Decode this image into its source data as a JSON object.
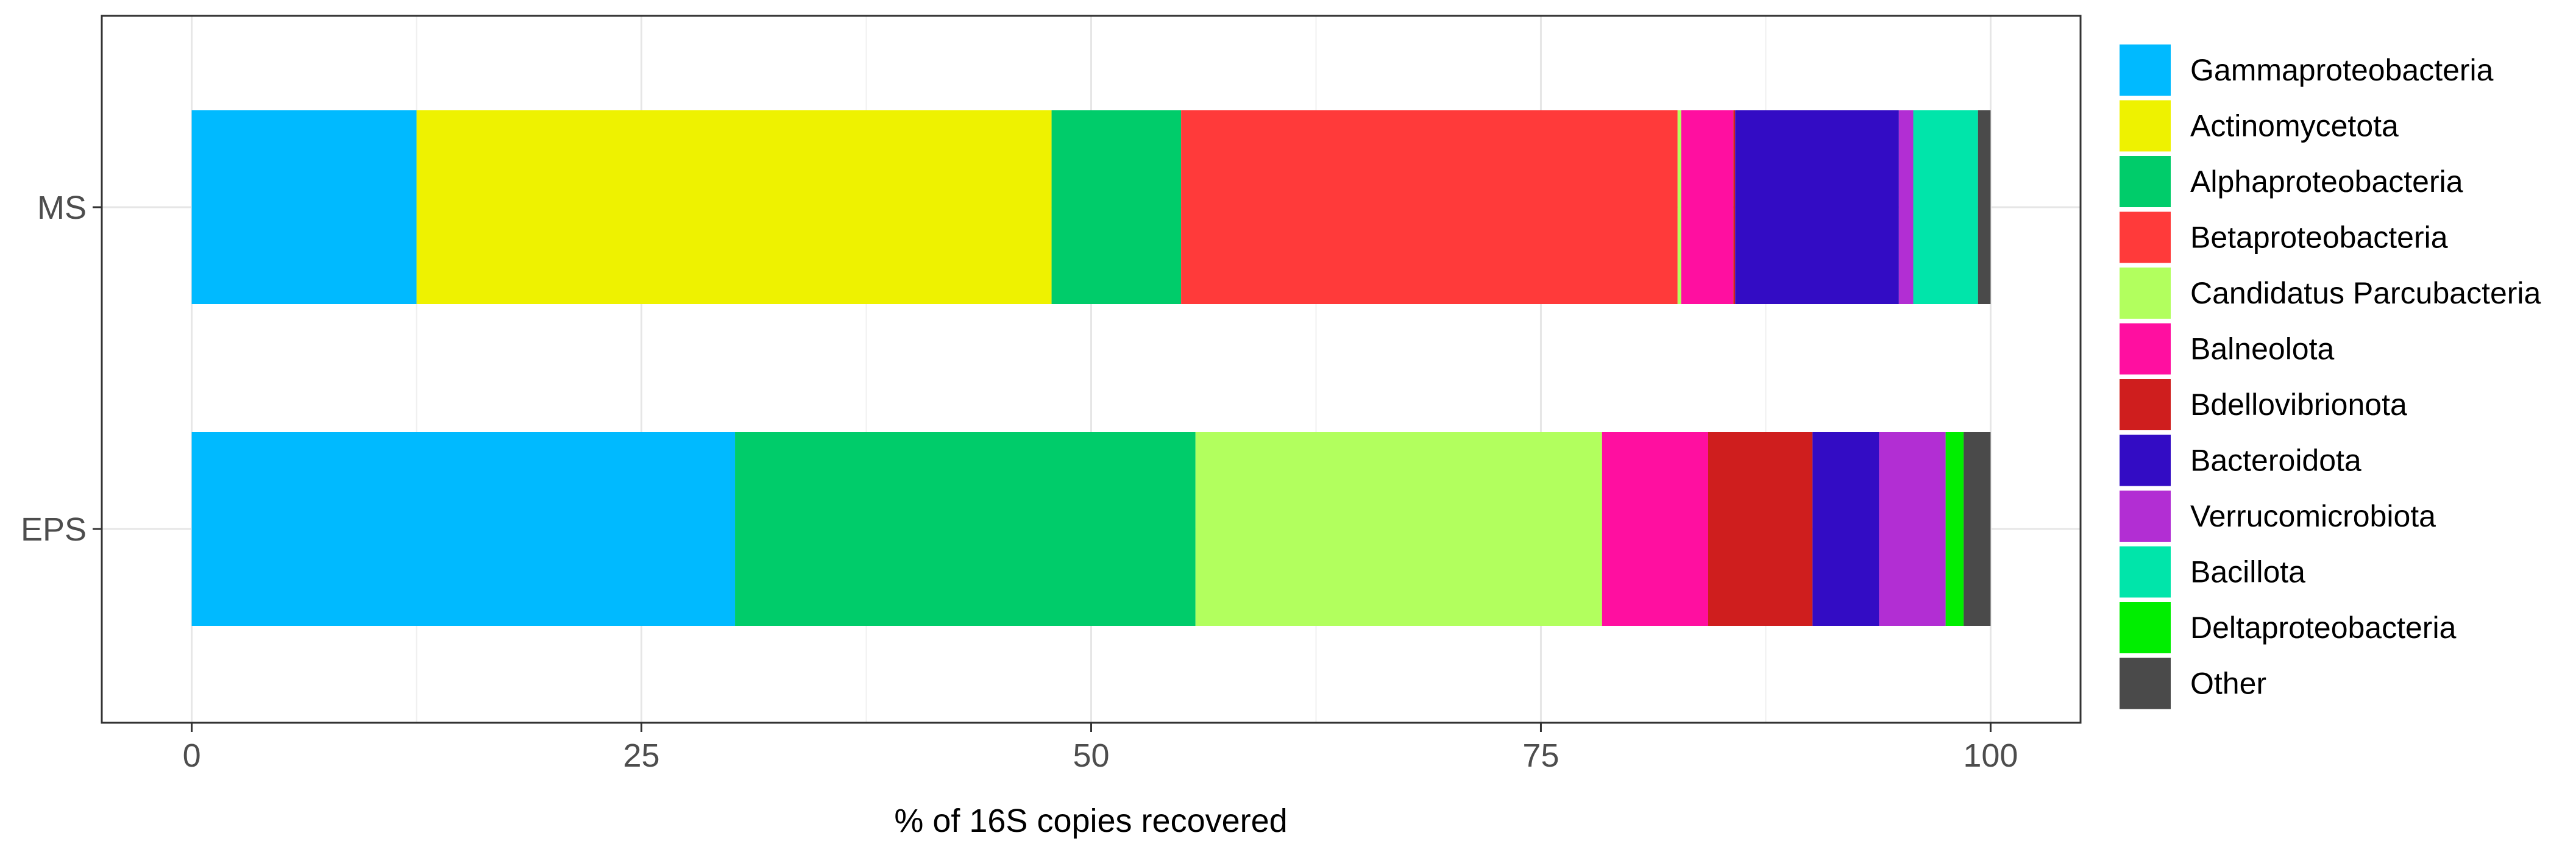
{
  "chart_data": {
    "type": "bar",
    "orientation": "horizontal",
    "stacked": true,
    "xlabel": "% of 16S copies recovered",
    "ylabel": "",
    "xlim": [
      -5,
      105
    ],
    "xticks": [
      0,
      25,
      50,
      75,
      100
    ],
    "categories": [
      "MS",
      "EPS"
    ],
    "grid": true,
    "legend_position": "right",
    "series": [
      {
        "name": "Gammaproteobacteria",
        "color": "#00BAFF",
        "values": [
          12.5,
          30.2
        ]
      },
      {
        "name": "Actinomycetota",
        "color": "#EEF200",
        "values": [
          35.3,
          0
        ]
      },
      {
        "name": "Alphaproteobacteria",
        "color": "#00CC6A",
        "values": [
          7.2,
          25.6
        ]
      },
      {
        "name": "Betaproteobacteria",
        "color": "#FF3A3A",
        "values": [
          27.6,
          0
        ]
      },
      {
        "name": "Candidatus Parcubacteria",
        "color": "#B2FF5E",
        "values": [
          0.2,
          22.6
        ]
      },
      {
        "name": "Balneolota",
        "color": "#FF0FA0",
        "values": [
          2.9,
          5.9
        ]
      },
      {
        "name": "Bdellovibrionota",
        "color": "#CF1E1E",
        "values": [
          0.1,
          5.8
        ]
      },
      {
        "name": "Bacteroidota",
        "color": "#330CC4",
        "values": [
          9.1,
          3.7
        ]
      },
      {
        "name": "Verrucomicrobiota",
        "color": "#B22ED3",
        "values": [
          0.8,
          3.7
        ]
      },
      {
        "name": "Bacillota",
        "color": "#00E5AA",
        "values": [
          3.6,
          0
        ]
      },
      {
        "name": "Deltaproteobacteria",
        "color": "#00EE00",
        "values": [
          0,
          1.0
        ]
      },
      {
        "name": "Other",
        "color": "#4A4A4A",
        "values": [
          0.7,
          1.5
        ]
      }
    ]
  }
}
